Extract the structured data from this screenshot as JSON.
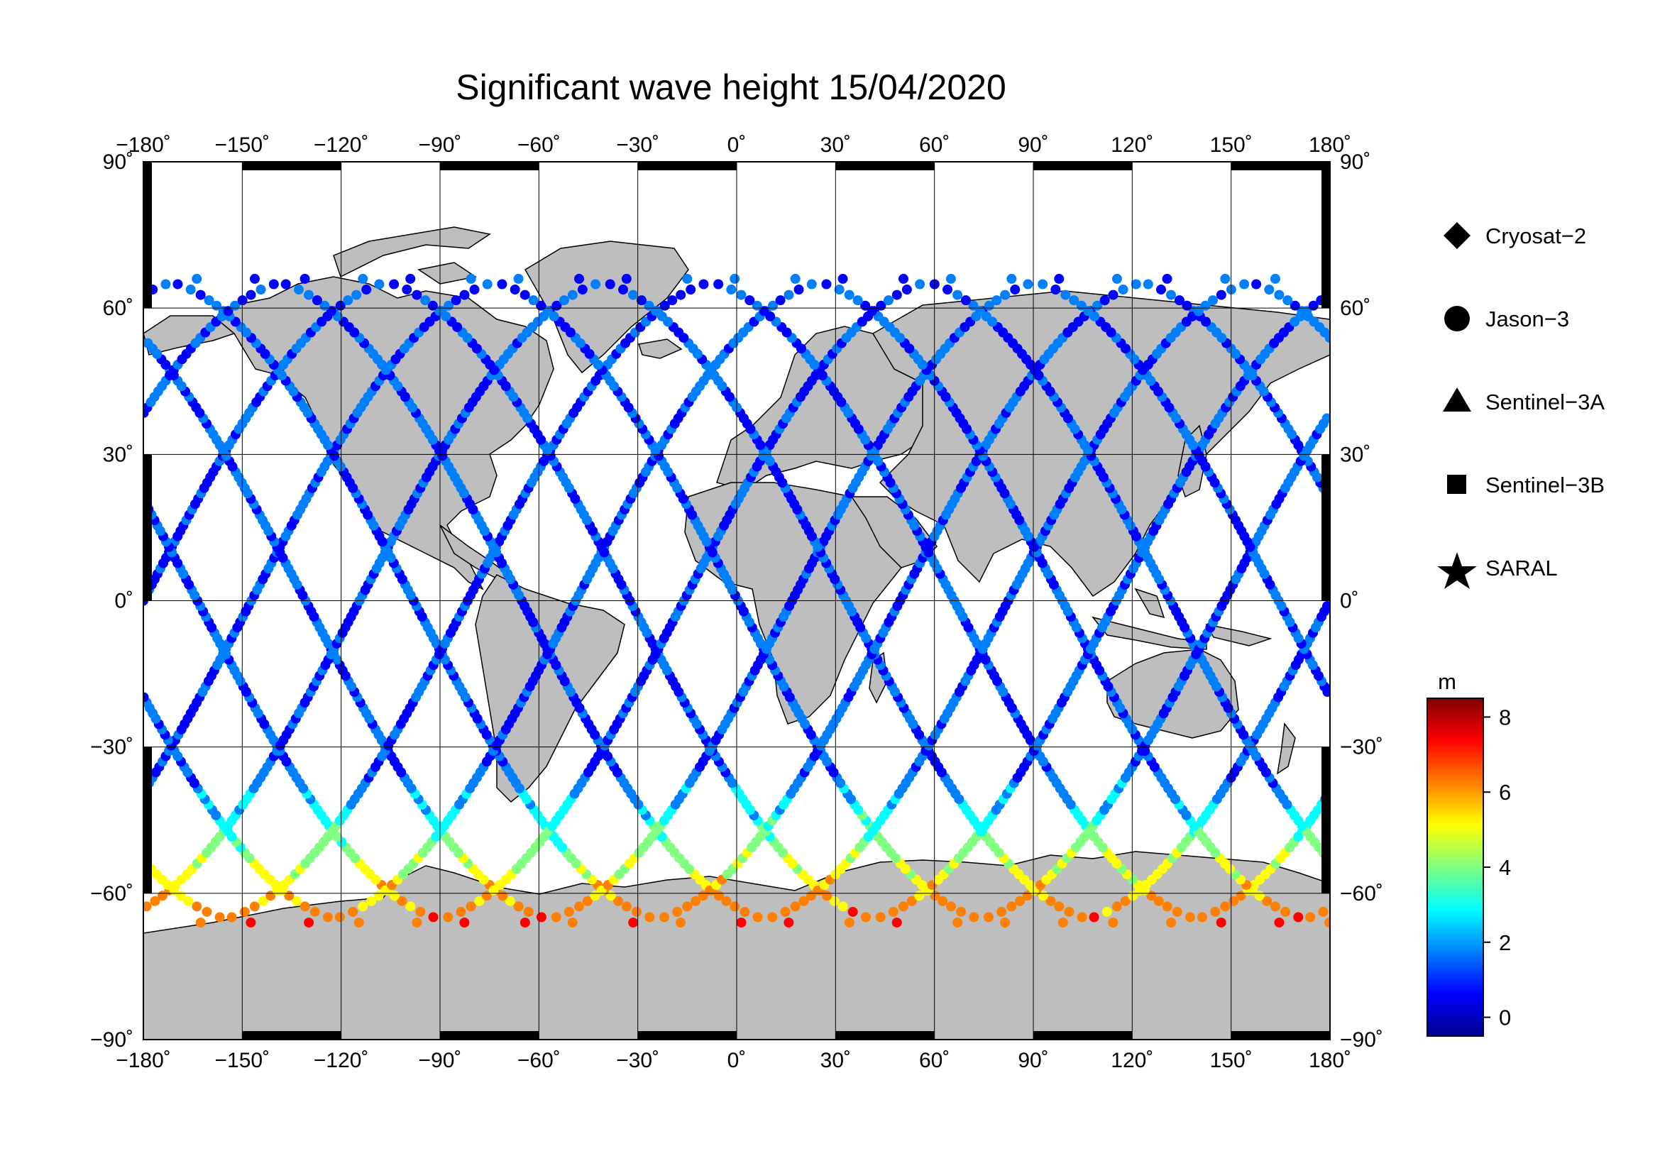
{
  "title": "Significant wave height 15/04/2020",
  "axes": {
    "lon_ticks": [
      "−180˚",
      "−150˚",
      "−120˚",
      "−90˚",
      "−60˚",
      "−30˚",
      "0˚",
      "30˚",
      "60˚",
      "90˚",
      "120˚",
      "150˚",
      "180˚"
    ],
    "lat_ticks_left": [
      "90˚",
      "60˚",
      "30˚",
      "0˚",
      "−30˚",
      "−60˚",
      "−90˚"
    ],
    "lat_ticks_right": [
      "90˚",
      "60˚",
      "30˚",
      "0˚",
      "−30˚",
      "−60˚",
      "−90˚"
    ]
  },
  "legend": {
    "items": [
      {
        "label": "Cryosat−2",
        "marker": "diamond"
      },
      {
        "label": "Jason−3",
        "marker": "circle"
      },
      {
        "label": "Sentinel−3A",
        "marker": "triangle"
      },
      {
        "label": "Sentinel−3B",
        "marker": "square"
      },
      {
        "label": "SARAL",
        "marker": "star"
      }
    ]
  },
  "colorbar": {
    "unit": "m",
    "ticks": [
      "8",
      "6",
      "4",
      "2",
      "0"
    ],
    "range": [
      -0.5,
      8.5
    ],
    "colors": [
      "#00008f",
      "#0000ff",
      "#0080ff",
      "#00ffff",
      "#80ff80",
      "#ffff00",
      "#ff8000",
      "#ff0000",
      "#800000"
    ]
  },
  "colors": {
    "land": "#bebebe",
    "ocean": "#ffffff",
    "grid": "#000000"
  }
}
